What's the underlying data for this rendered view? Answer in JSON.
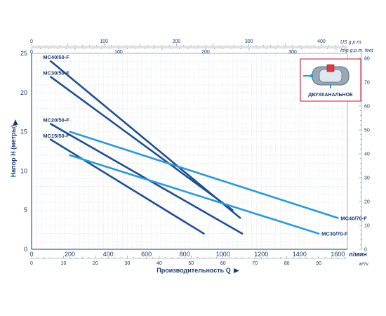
{
  "chart_data": {
    "type": "line",
    "x_unit": "л/мин",
    "y_unit_right": "feet",
    "ylabel": "Напор H (метры)",
    "xlabel": "Производительность Q",
    "xlim": [
      0,
      1650
    ],
    "ylim": [
      0,
      25
    ],
    "x_ticks": [
      0,
      200,
      400,
      600,
      800,
      1000,
      1200,
      1400,
      1600
    ],
    "y_ticks": [
      0,
      5,
      10,
      15,
      20,
      25
    ],
    "top_axis_us": {
      "label": "US g.p.m.",
      "ticks": [
        0,
        100,
        200,
        300,
        400
      ]
    },
    "top_axis_imp": {
      "label": "Imp g.p.m.",
      "ticks": [
        0,
        100,
        200,
        300
      ]
    },
    "bottom_axis_m3h": {
      "label": "м³/ч",
      "ticks": [
        0,
        10,
        20,
        30,
        40,
        50,
        60,
        70,
        80,
        90
      ]
    },
    "right_axis_feet": {
      "label": "feet",
      "ticks": [
        0,
        10,
        20,
        30,
        40,
        50,
        60,
        70,
        80
      ]
    },
    "inset_label": "ДВУХКАНАЛЬНОЕ",
    "grid": true,
    "series": [
      {
        "name": "MC40/50-F",
        "color": "#1f4f91",
        "x": [
          100,
          1090
        ],
        "y": [
          24,
          4
        ]
      },
      {
        "name": "MC30/50-F",
        "color": "#1f4f91",
        "x": [
          100,
          1050
        ],
        "y": [
          22,
          5
        ]
      },
      {
        "name": "MC20/50-F",
        "color": "#1f4f91",
        "x": [
          100,
          1100
        ],
        "y": [
          16,
          2
        ]
      },
      {
        "name": "MC15/50-F",
        "color": "#1f4f91",
        "x": [
          100,
          900
        ],
        "y": [
          14,
          2
        ]
      },
      {
        "name": "MC40/70-F",
        "color": "#2a9ad6",
        "x": [
          200,
          1600
        ],
        "y": [
          15,
          4
        ]
      },
      {
        "name": "MC30/70-F",
        "color": "#2a9ad6",
        "x": [
          200,
          1500
        ],
        "y": [
          12,
          2
        ]
      }
    ]
  }
}
